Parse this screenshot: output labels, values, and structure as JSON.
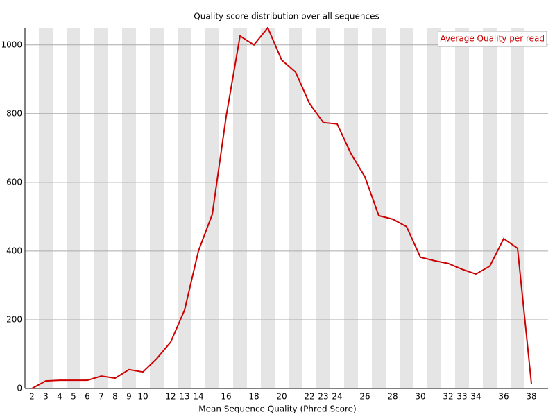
{
  "chart_data": {
    "type": "line",
    "title": "Quality score distribution over all sequences",
    "x_label": "Mean Sequence Quality (Phred Score)",
    "categories": [
      "2",
      "3",
      "4",
      "5",
      "6",
      "7",
      "8",
      "9",
      "10",
      null,
      "12",
      "13",
      "14",
      null,
      "16",
      null,
      "18",
      null,
      "20",
      null,
      "22",
      "23",
      "24",
      null,
      "26",
      null,
      "28",
      null,
      "30",
      null,
      "32",
      "33",
      "34",
      null,
      "36",
      null,
      "38"
    ],
    "series": [
      {
        "name": "Average Quality per read",
        "color": "#cc0000",
        "values": [
          0,
          22,
          24,
          24,
          24,
          36,
          30,
          55,
          48,
          87,
          135,
          228,
          400,
          507,
          792,
          1026,
          1000,
          1050,
          956,
          921,
          830,
          774,
          770,
          683,
          616,
          503,
          493,
          471,
          382,
          372,
          364,
          347,
          333,
          356,
          436,
          408,
          14
        ]
      }
    ],
    "ylim": [
      0,
      1050
    ],
    "yticks": [
      0,
      200,
      400,
      600,
      800,
      1000
    ],
    "grid": true,
    "legend": "top-right"
  }
}
